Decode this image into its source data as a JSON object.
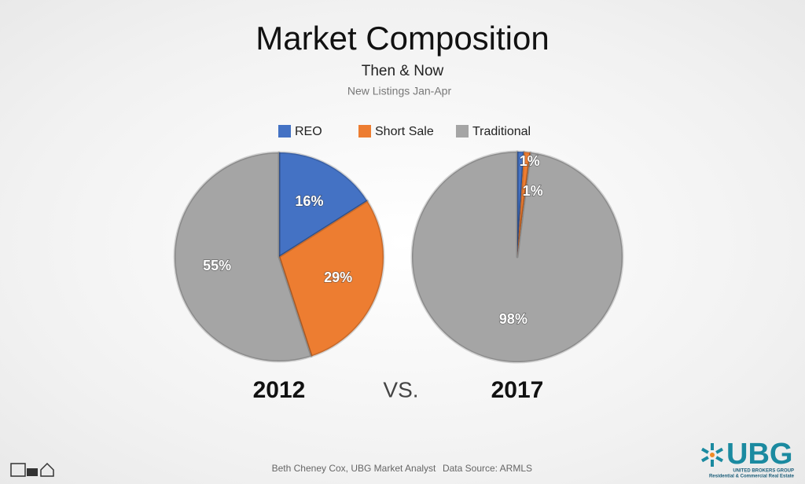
{
  "title": "Market Composition",
  "subtitle": "Then & Now",
  "caption": "New Listings Jan-Apr",
  "vs": "VS.",
  "chart_data": [
    {
      "type": "pie",
      "title": "2012",
      "categories": [
        "REO",
        "Short Sale",
        "Traditional"
      ],
      "values": [
        16,
        29,
        55
      ],
      "value_labels": [
        "16%",
        "29%",
        "55%"
      ],
      "colors": [
        "#4472c4",
        "#ed7d31",
        "#a5a5a5"
      ]
    },
    {
      "type": "pie",
      "title": "2017",
      "categories": [
        "REO",
        "Short Sale",
        "Traditional"
      ],
      "values": [
        1,
        1,
        98
      ],
      "value_labels": [
        "1%",
        "1%",
        "98%"
      ],
      "colors": [
        "#4472c4",
        "#ed7d31",
        "#a5a5a5"
      ]
    }
  ],
  "footer": {
    "author": "Beth Cheney Cox, UBG Market Analyst",
    "source": "Data Source: ARMLS"
  },
  "logo": {
    "name": "UBG",
    "company": "UNITED BROKERS GROUP",
    "tagline": "Residential & Commercial Real Estate"
  }
}
